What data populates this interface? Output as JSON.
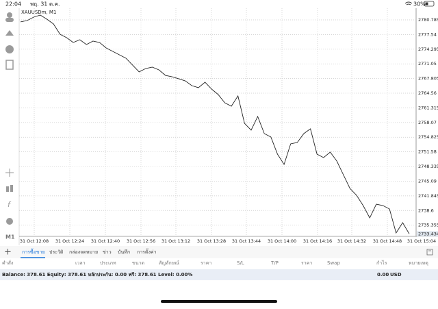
{
  "status_bar": {
    "time": "22:04",
    "date": "พฤ. 31 ต.ค.",
    "battery": "30%"
  },
  "chart_data": {
    "type": "line",
    "title": "XAUUSDm, M1",
    "color": "#222222",
    "values": [
      2780.33,
      2780.63,
      2781.39,
      2781.85,
      2780.94,
      2779.88,
      2777.6,
      2776.84,
      2775.78,
      2776.39,
      2775.33,
      2776.09,
      2775.78,
      2774.57,
      2773.81,
      2773.05,
      2772.3,
      2770.78,
      2769.27,
      2770.02,
      2770.33,
      2769.72,
      2768.5,
      2768.2,
      2767.75,
      2767.29,
      2766.23,
      2765.78,
      2766.99,
      2765.47,
      2764.26,
      2762.44,
      2761.68,
      2763.96,
      2757.89,
      2756.38,
      2759.41,
      2755.62,
      2754.86,
      2751.07,
      2748.8,
      2753.35,
      2753.65,
      2755.62,
      2756.68,
      2751.07,
      2750.31,
      2751.52,
      2749.55,
      2746.52,
      2743.49,
      2741.97,
      2739.7,
      2736.97,
      2740.0,
      2739.7,
      2738.94,
      2733.63,
      2735.91,
      2733.43
    ],
    "ylim": [
      2732.88,
      2783.36
    ],
    "yticks": [
      2780.785,
      2777.54,
      2774.295,
      2771.05,
      2767.805,
      2764.56,
      2761.315,
      2758.07,
      2754.825,
      2751.58,
      2748.335,
      2745.09,
      2741.845,
      2738.6,
      2735.355
    ],
    "last_price": 2733.434,
    "xticks": [
      "31 Oct 12:08",
      "31 Oct 12:24",
      "31 Oct 12:40",
      "31 Oct 12:56",
      "31 Oct 13:12",
      "31 Oct 13:28",
      "31 Oct 13:44",
      "31 Oct 14:00",
      "31 Oct 14:16",
      "31 Oct 14:32",
      "31 Oct 14:48",
      "31 Oct 15:04"
    ],
    "grid": true
  },
  "toolbar": {
    "timeframe": "M1"
  },
  "tabs": [
    "การซื้อขาย",
    "ประวัติ",
    "กล่องจดหมาย",
    "ข่าว",
    "บันทึก",
    "การตั้งค่า"
  ],
  "table": {
    "columns": [
      "คำสั่ง",
      "เวลา",
      "ประเภท",
      "ขนาด",
      "สัญลักษณ์",
      "ราคา",
      "S/L",
      "T/P",
      "ราคา",
      "Swap",
      "กำไร",
      "หมายเหตุ"
    ]
  },
  "summary": {
    "text": "Balance: 378.61 Equity: 378.61 หลักประกัน: 0.00 ฟรี: 378.61 Level: 0.00%",
    "profit": "0.00",
    "currency": "USD"
  }
}
